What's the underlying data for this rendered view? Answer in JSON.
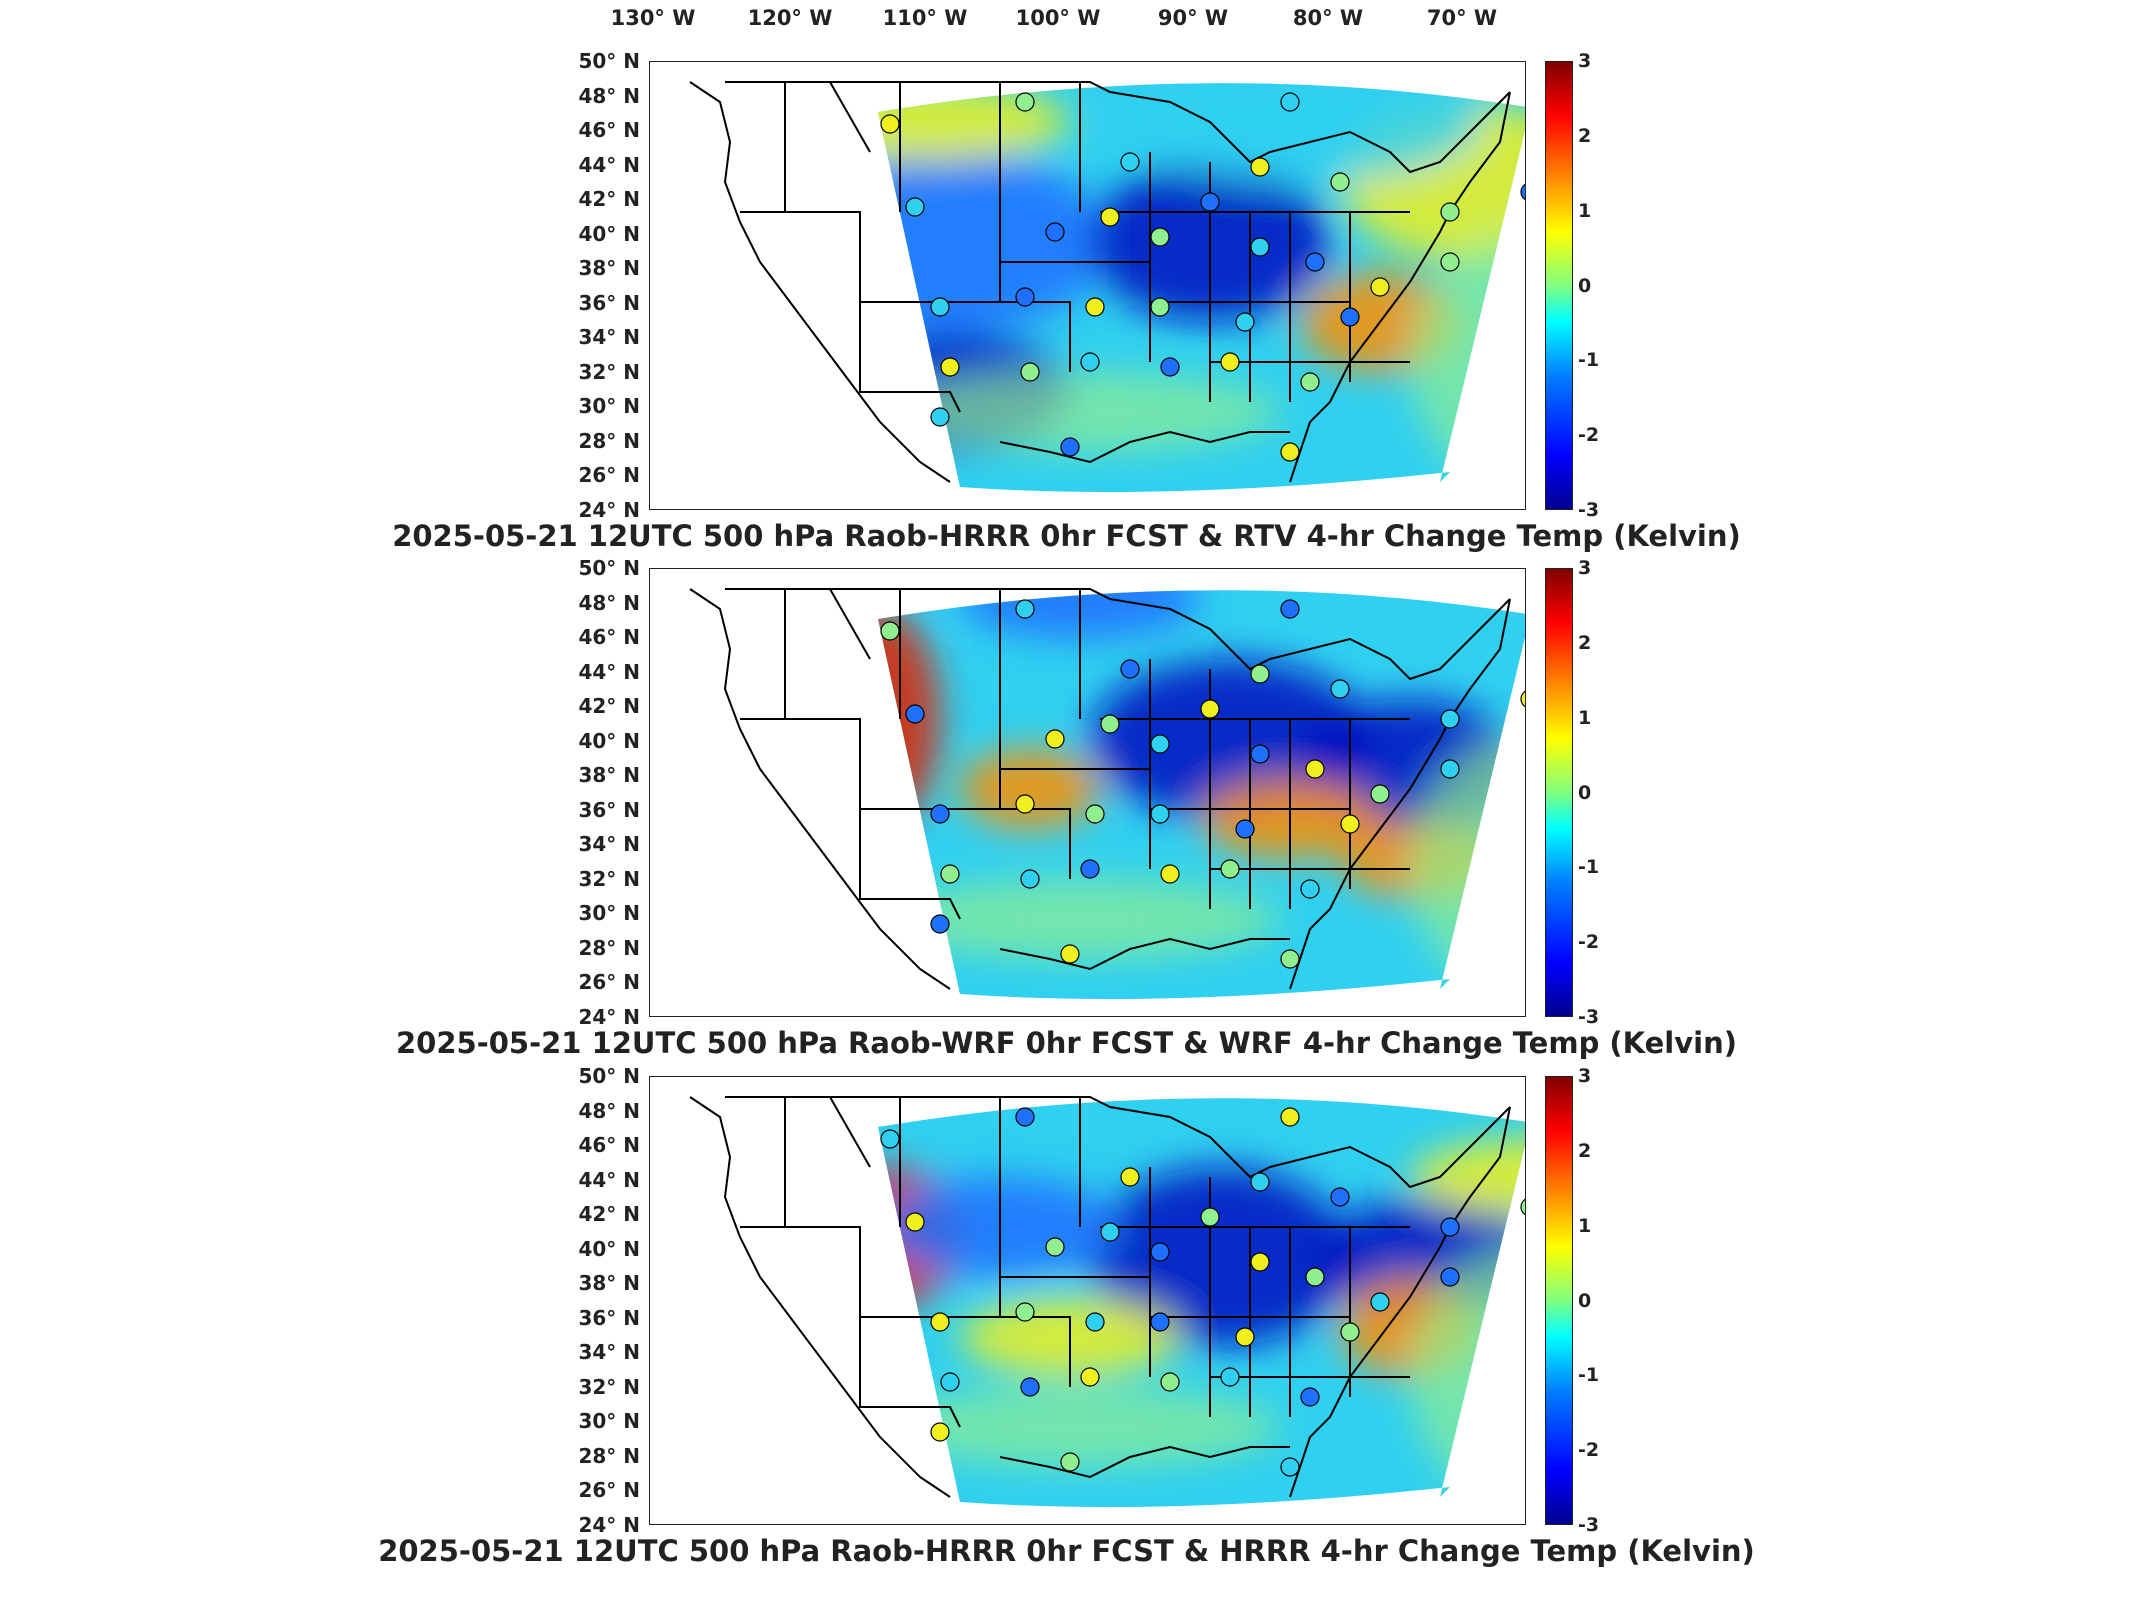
{
  "longitude_labels": [
    "130° W",
    "120° W",
    "110° W",
    "100° W",
    "90° W",
    "80° W",
    "70° W"
  ],
  "latitude_labels": [
    "50° N",
    "48° N",
    "46° N",
    "44° N",
    "42° N",
    "40° N",
    "38° N",
    "36° N",
    "34° N",
    "32° N",
    "30° N",
    "28° N",
    "26° N",
    "24° N"
  ],
  "colorbar": {
    "unit": "Kelvin",
    "min": -3,
    "max": 3,
    "ticks": [
      "3",
      "2",
      "1",
      "0",
      "-1",
      "-2",
      "-3"
    ],
    "colormap": "jet"
  },
  "panels": [
    {
      "title": "2025-05-21 12UTC 500 hPa Raob-HRRR 0hr FCST & RTV 4-hr Change Temp (Kelvin)"
    },
    {
      "title": "2025-05-21 12UTC 500 hPa Raob-WRF 0hr FCST & WRF 4-hr Change Temp (Kelvin)"
    },
    {
      "title": "2025-05-21 12UTC 500 hPa Raob-HRRR 0hr FCST & HRRR 4-hr Change Temp (Kelvin)"
    }
  ],
  "colors": {
    "deep_blue": "#0010c0",
    "blue": "#2070ff",
    "cyan": "#30d0f0",
    "green": "#90f090",
    "yellow": "#f0f020",
    "orange": "#ff9000",
    "red": "#e02000",
    "outline": "#000000"
  }
}
